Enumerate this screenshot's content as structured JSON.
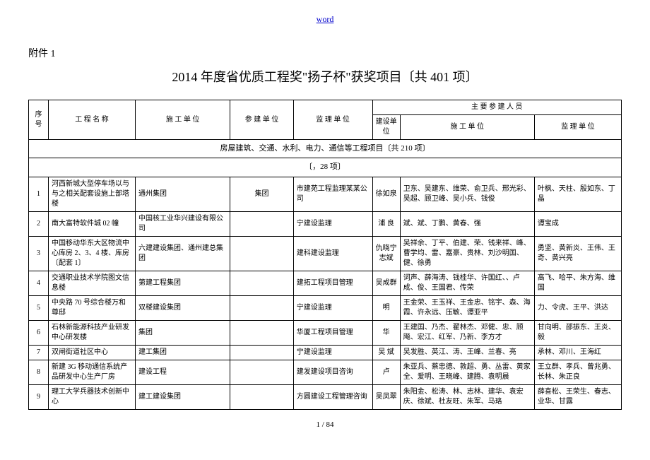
{
  "header_link": "word",
  "attachment_label": "附件 1",
  "title": "2014 年度省优质工程奖\"扬子杯\"获奖项目〔共 401 项〕",
  "footer": "1 / 84",
  "headers": {
    "seq": "序号",
    "project": "工 程 名 称",
    "constructor": "施 工 单 位",
    "participant": "参 建 单 位",
    "supervisor": "监 理 单 位",
    "main_personnel": "主 要 参 建 人 员",
    "build_unit": "建设单位",
    "const_unit": "施 工 单 位",
    "super_unit": "监 理 单 位"
  },
  "section1": "房屋建筑、交通、水利、电力、通信等工程项目〔共 210 项〕",
  "section2": "〔，28 项〕",
  "rows": [
    {
      "n": "1",
      "proj": "河西新城大型停车场以与与之相关配套设施上部塔楼",
      "const": "通州集团",
      "part": "集团",
      "super": "市建苑工程监理某某公司",
      "build": "徐如泉",
      "pc": "卫东、吴建东、维荣、俞卫兵、邢光彩、吴超、顾卫峰、吴小兵、钱俊",
      "ps": "叶枫、天柱、殷如东、丁晶"
    },
    {
      "n": "2",
      "proj": "南大富特软件城 02 幢",
      "const": "中国核工业华兴建设有限公司",
      "part": "",
      "super": "宁建设监理",
      "build": "浦 良",
      "pc": "斌、斌、丁鹏、黄春、强",
      "ps": "谭宝成"
    },
    {
      "n": "3",
      "proj": "中国移动华东大区物流中心库房 2、3、4 楼、库房〔配套 1〕",
      "const": "六建建设集团、通州建总集团",
      "part": "",
      "super": "建科建设监理",
      "build": "仇晓宁 志斌",
      "pc": "吴祥余、丁平、伯建、荣、钱来祥、峰、曹学均、雷、嘉豪、贵林、刘沙明国、健、徐勇",
      "ps": "勇坚、黄新炎、王伟、王奇、黄兴亮"
    },
    {
      "n": "4",
      "proj": "交通职业技术学院图文信息楼",
      "const": "第建工程集团",
      "part": "",
      "super": "建拓工程项目管理",
      "build": "吴成群",
      "pc": "词声、薛海涛、钱桂华、许国红、、卢成、俊、王国君、传荣",
      "ps": "高飞、哈平、朱方海、维国"
    },
    {
      "n": "5",
      "proj": "中央路 70 号综合楼万和尊邸",
      "const": "双楼建设集团",
      "part": "",
      "super": "宁建设监理",
      "build": "明",
      "pc": "王金荣、王玉祥、王金忠、铭宇、森、海霞、许永远、压敏、谭亚平",
      "ps": "力、令虎、王平、洪达"
    },
    {
      "n": "6",
      "proj": "石林新能源科技产业研发中心研发楼",
      "const": "集团",
      "part": "",
      "super": "华厦工程项目管理",
      "build": "华",
      "pc": "王建国、乃杰、翟林杰、邓健、忠、顾飚、宏江、红军、乃新、李方才",
      "ps": "甘向明、邵振东、王炎、毅"
    },
    {
      "n": "7",
      "proj": "双闸街道社区中心",
      "const": "建工集团",
      "part": "",
      "super": "宁建设监理",
      "build": "吴 斌",
      "pc": "吴发胜、英江、涛、王峰、兰春、亮",
      "ps": "承林、邓川、王海红"
    },
    {
      "n": "8",
      "proj": "新建 3G 移动通信系统产品研发中心生产厂房",
      "const": "建设工程",
      "part": "",
      "super": "建发建设项目咨询",
      "build": "卢",
      "pc": "朱亚兵、蔡忠德、敦超、勇、丛雷、黄家全、爱明、王晓峰、建腾、袁明晨",
      "ps": "王立群、孝兵、曾兆勇、长林、朱正良"
    },
    {
      "n": "9",
      "proj": "理工大学兵器技术创新中心",
      "const": "建工建设集团",
      "part": "",
      "super": "方圆建设工程管理咨询",
      "build": "吴凤翠",
      "pc": "朱阳金、松涛、林、志林、建华、袁宏庆、徐斌、杜友旺、朱军、马珞",
      "ps": "薛喜松、王荣生、春志、业华、甘露"
    }
  ]
}
